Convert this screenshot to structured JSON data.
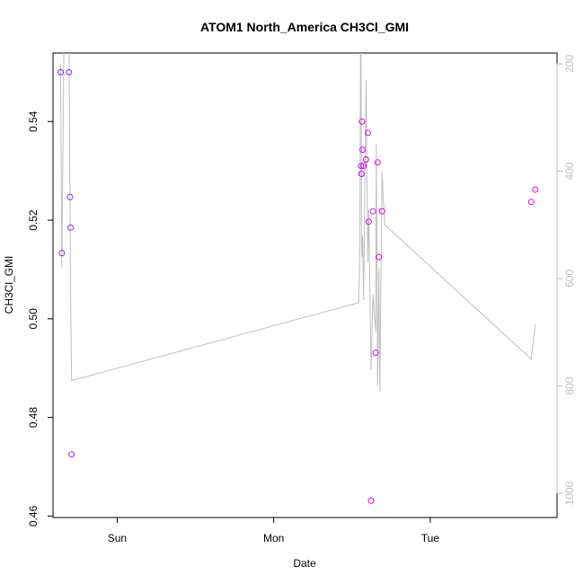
{
  "chart_data": {
    "type": "scatter",
    "title": "ATOM1 North_America CH3Cl_GMI",
    "xlabel": "Date",
    "ylabel": "CH3Cl_GMI",
    "x_unit": "days since Sat 00:00",
    "xlim": [
      0.59,
      3.81
    ],
    "x_ticks": [
      {
        "value": 1.0,
        "label": "Sun"
      },
      {
        "value": 2.0,
        "label": "Mon"
      },
      {
        "value": 3.0,
        "label": "Tue"
      }
    ],
    "ylim": [
      0.4597,
      0.5539
    ],
    "y_ticks": [
      0.46,
      0.48,
      0.5,
      0.52,
      0.54
    ],
    "right_axis": {
      "ylim": [
        1045,
        180
      ],
      "ticks": [
        200,
        400,
        600,
        800,
        1000
      ],
      "color": "#bebebe"
    },
    "points": {
      "x": [
        0.638,
        0.646,
        0.692,
        0.699,
        0.702,
        0.709,
        2.558,
        2.561,
        2.564,
        2.568,
        2.574,
        2.59,
        2.601,
        2.607,
        2.622,
        2.634,
        2.651,
        2.664,
        2.672,
        2.692,
        3.645,
        3.671
      ],
      "y": [
        0.55,
        0.5133,
        0.55,
        0.5247,
        0.5185,
        0.4725,
        0.531,
        0.5294,
        0.54,
        0.5343,
        0.531,
        0.5323,
        0.5377,
        0.5197,
        0.4631,
        0.5218,
        0.4931,
        0.5317,
        0.5125,
        0.5218,
        0.5237,
        0.5262
      ],
      "colors": [
        "#7b2be2",
        "#8a2be2",
        "#7b2be2",
        "#8a2be2",
        "#8a2be2",
        "#8a2be2",
        "#cc00ff",
        "#c800ff",
        "#dd00f0",
        "#d000f8",
        "#d000f8",
        "#dd00f0",
        "#e000ee",
        "#e000ee",
        "#e500e5",
        "#e000ee",
        "#e000ee",
        "#e000ee",
        "#e500e5",
        "#e500e5",
        "#ff00cc",
        "#ff00cc"
      ]
    },
    "pressure_line": {
      "color": "#bebebe",
      "x": [
        0.638,
        0.646,
        0.66,
        0.692,
        0.699,
        0.702,
        0.709,
        2.542,
        2.55,
        2.555,
        2.558,
        2.561,
        2.564,
        2.568,
        2.574,
        2.59,
        2.601,
        2.607,
        2.622,
        2.634,
        2.651,
        2.655,
        2.664,
        2.672,
        2.678,
        2.692,
        2.7,
        2.71,
        3.645,
        3.671
      ],
      "y": [
        200,
        580,
        160,
        160,
        470,
        620,
        790,
        645,
        560,
        160,
        160,
        530,
        560,
        520,
        640,
        230,
        570,
        470,
        770,
        630,
        700,
        350,
        800,
        580,
        810,
        400,
        450,
        500,
        750,
        685
      ]
    }
  }
}
